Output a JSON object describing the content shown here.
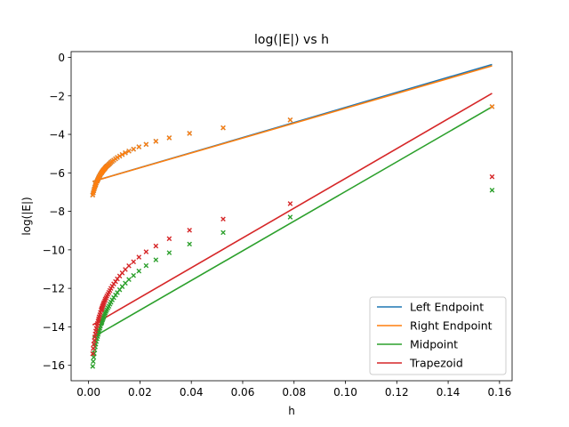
{
  "chart_data": {
    "type": "scatter",
    "title": "log(|E|) vs h",
    "xlabel": "h",
    "ylabel": "log(|E|)",
    "xlim": [
      -0.0068,
      0.1649
    ],
    "ylim": [
      -16.8,
      0.3
    ],
    "xticks": [
      0.0,
      0.02,
      0.04,
      0.06,
      0.08,
      0.1,
      0.12,
      0.14,
      0.16
    ],
    "xtick_labels": [
      "0.00",
      "0.02",
      "0.04",
      "0.06",
      "0.08",
      "0.10",
      "0.12",
      "0.14",
      "0.16"
    ],
    "yticks": [
      0,
      -2,
      -4,
      -6,
      -8,
      -10,
      -12,
      -14,
      -16
    ],
    "ytick_labels": [
      "0",
      "−2",
      "−4",
      "−6",
      "−8",
      "−10",
      "−12",
      "−14",
      "−16"
    ],
    "grid": false,
    "legend_position": "lower-right",
    "series": [
      {
        "name": "Left Endpoint",
        "color": "#1f77b4",
        "points": {
          "x": [
            0.1571,
            0.0785,
            0.0524,
            0.0393,
            0.0314,
            0.0262,
            0.0224,
            0.0196,
            0.0175,
            0.0157,
            0.0143,
            0.0131,
            0.0121,
            0.0112,
            0.0105,
            0.0098,
            0.0092,
            0.0087,
            0.0083,
            0.0079,
            0.0075,
            0.0071,
            0.0068,
            0.0065,
            0.0063,
            0.006,
            0.0058,
            0.0056,
            0.0054,
            0.0052,
            0.0051,
            0.0049,
            0.0046,
            0.0044,
            0.0041,
            0.0039,
            0.0037,
            0.0035,
            0.0033,
            0.003,
            0.0028,
            0.0026,
            0.0024,
            0.0022,
            0.002,
            0.0018,
            0.0016
          ],
          "y": [
            -2.56,
            -3.25,
            -3.66,
            -3.95,
            -4.18,
            -4.36,
            -4.52,
            -4.65,
            -4.77,
            -4.87,
            -4.96,
            -5.05,
            -5.13,
            -5.2,
            -5.27,
            -5.34,
            -5.4,
            -5.45,
            -5.51,
            -5.56,
            -5.61,
            -5.65,
            -5.69,
            -5.74,
            -5.78,
            -5.82,
            -5.85,
            -5.89,
            -5.92,
            -5.96,
            -5.99,
            -6.02,
            -6.08,
            -6.14,
            -6.2,
            -6.26,
            -6.32,
            -6.38,
            -6.44,
            -6.52,
            -6.6,
            -6.67,
            -6.75,
            -6.84,
            -6.93,
            -7.04,
            -7.15
          ]
        },
        "fit": {
          "x": [
            0.0016,
            0.1571
          ],
          "y": [
            -6.45,
            -0.37
          ]
        }
      },
      {
        "name": "Right Endpoint",
        "color": "#ff7f0e",
        "points": {
          "x": [
            0.1571,
            0.0785,
            0.0524,
            0.0393,
            0.0314,
            0.0262,
            0.0224,
            0.0196,
            0.0175,
            0.0157,
            0.0143,
            0.0131,
            0.0121,
            0.0112,
            0.0105,
            0.0098,
            0.0092,
            0.0087,
            0.0083,
            0.0079,
            0.0075,
            0.0071,
            0.0068,
            0.0065,
            0.0063,
            0.006,
            0.0058,
            0.0056,
            0.0054,
            0.0052,
            0.0051,
            0.0049,
            0.0046,
            0.0044,
            0.0041,
            0.0039,
            0.0037,
            0.0035,
            0.0033,
            0.003,
            0.0028,
            0.0026,
            0.0024,
            0.0022,
            0.002,
            0.0018,
            0.0016
          ],
          "y": [
            -2.56,
            -3.25,
            -3.66,
            -3.95,
            -4.18,
            -4.36,
            -4.52,
            -4.65,
            -4.77,
            -4.87,
            -4.96,
            -5.05,
            -5.13,
            -5.2,
            -5.27,
            -5.34,
            -5.4,
            -5.45,
            -5.51,
            -5.56,
            -5.61,
            -5.65,
            -5.69,
            -5.74,
            -5.78,
            -5.82,
            -5.85,
            -5.89,
            -5.92,
            -5.96,
            -5.99,
            -6.02,
            -6.08,
            -6.14,
            -6.2,
            -6.26,
            -6.32,
            -6.38,
            -6.44,
            -6.52,
            -6.6,
            -6.67,
            -6.75,
            -6.84,
            -6.93,
            -7.04,
            -7.15
          ]
        },
        "fit": {
          "x": [
            0.0016,
            0.1571
          ],
          "y": [
            -6.45,
            -0.44
          ]
        }
      },
      {
        "name": "Midpoint",
        "color": "#2ca02c",
        "points": {
          "x": [
            0.1571,
            0.0785,
            0.0524,
            0.0393,
            0.0314,
            0.0262,
            0.0224,
            0.0196,
            0.0175,
            0.0157,
            0.0143,
            0.0131,
            0.0121,
            0.0112,
            0.0105,
            0.0098,
            0.0092,
            0.0087,
            0.0083,
            0.0079,
            0.0075,
            0.0071,
            0.0068,
            0.0065,
            0.0063,
            0.006,
            0.0058,
            0.0056,
            0.0054,
            0.0052,
            0.0051,
            0.0049,
            0.0046,
            0.0044,
            0.0041,
            0.0039,
            0.0037,
            0.0035,
            0.0033,
            0.003,
            0.0028,
            0.0026,
            0.0024,
            0.0022,
            0.002,
            0.0018,
            0.0016
          ],
          "y": [
            -6.9,
            -8.3,
            -9.1,
            -9.7,
            -10.15,
            -10.52,
            -10.82,
            -11.1,
            -11.33,
            -11.54,
            -11.73,
            -11.91,
            -12.07,
            -12.22,
            -12.35,
            -12.48,
            -12.6,
            -12.72,
            -12.82,
            -12.93,
            -13.02,
            -13.11,
            -13.2,
            -13.28,
            -13.36,
            -13.44,
            -13.51,
            -13.58,
            -13.65,
            -13.72,
            -13.78,
            -13.84,
            -13.96,
            -14.07,
            -14.18,
            -14.28,
            -14.39,
            -14.5,
            -14.62,
            -14.76,
            -14.9,
            -15.04,
            -15.2,
            -15.38,
            -15.58,
            -15.8,
            -16.05
          ]
        },
        "fit": {
          "x": [
            0.0016,
            0.1571
          ],
          "y": [
            -14.55,
            -2.57
          ]
        }
      },
      {
        "name": "Trapezoid",
        "color": "#d62728",
        "points": {
          "x": [
            0.1571,
            0.0785,
            0.0524,
            0.0393,
            0.0314,
            0.0262,
            0.0224,
            0.0196,
            0.0175,
            0.0157,
            0.0143,
            0.0131,
            0.0121,
            0.0112,
            0.0105,
            0.0098,
            0.0092,
            0.0087,
            0.0083,
            0.0079,
            0.0075,
            0.0071,
            0.0068,
            0.0065,
            0.0063,
            0.006,
            0.0058,
            0.0056,
            0.0054,
            0.0052,
            0.0051,
            0.0049,
            0.0046,
            0.0044,
            0.0041,
            0.0039,
            0.0037,
            0.0035,
            0.0033,
            0.003,
            0.0028,
            0.0026,
            0.0024,
            0.0022,
            0.002,
            0.0018,
            0.0016
          ],
          "y": [
            -6.2,
            -7.6,
            -8.4,
            -8.98,
            -9.42,
            -9.8,
            -10.1,
            -10.38,
            -10.62,
            -10.83,
            -11.02,
            -11.2,
            -11.36,
            -11.51,
            -11.65,
            -11.77,
            -11.89,
            -12.0,
            -12.11,
            -12.21,
            -12.31,
            -12.4,
            -12.49,
            -12.57,
            -12.65,
            -12.73,
            -12.8,
            -12.87,
            -12.94,
            -13.01,
            -13.07,
            -13.13,
            -13.25,
            -13.37,
            -13.48,
            -13.59,
            -13.7,
            -13.82,
            -13.94,
            -14.08,
            -14.22,
            -14.37,
            -14.53,
            -14.71,
            -14.9,
            -15.12,
            -15.4
          ]
        },
        "fit": {
          "x": [
            0.0016,
            0.1571
          ],
          "y": [
            -13.9,
            -1.87
          ]
        }
      }
    ]
  }
}
